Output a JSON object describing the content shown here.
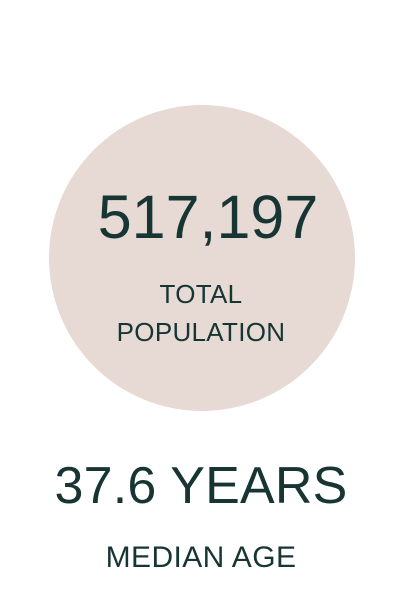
{
  "stats": {
    "population": {
      "value": "517,197",
      "label_line1": "TOTAL",
      "label_line2": "POPULATION"
    },
    "median_age": {
      "value": "37.6 YEARS",
      "label": "MEDIAN AGE"
    }
  },
  "colors": {
    "text": "#163533",
    "circle_fill": "#e7d9d3",
    "background": "#ffffff"
  }
}
